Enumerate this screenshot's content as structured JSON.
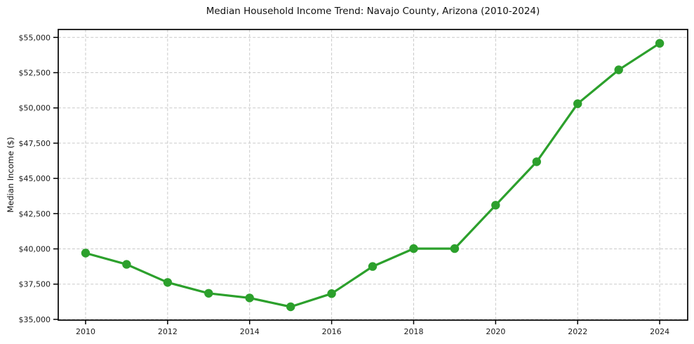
{
  "chart_data": {
    "type": "line",
    "title": "Median Household Income Trend: Navajo County, Arizona (2010-2024)",
    "xlabel": "",
    "ylabel": "Median Income ($)",
    "series": [
      {
        "name": "Median Household Income",
        "x": [
          2010,
          2011,
          2012,
          2013,
          2014,
          2015,
          2016,
          2017,
          2018,
          2019,
          2020,
          2021,
          2022,
          2023,
          2024
        ],
        "values": [
          39700,
          38900,
          37620,
          36850,
          36520,
          35890,
          36830,
          38750,
          40020,
          40020,
          43100,
          46180,
          50300,
          52700,
          54580
        ]
      }
    ],
    "xlim": [
      2009.333,
      2024.683
    ],
    "ylim": [
      34946,
      55563
    ],
    "x_ticks": [
      2010,
      2012,
      2014,
      2016,
      2018,
      2020,
      2022,
      2024
    ],
    "x_tick_labels": [
      "2010",
      "2012",
      "2014",
      "2016",
      "2018",
      "2020",
      "2022",
      "2024"
    ],
    "y_ticks": [
      35000,
      37500,
      40000,
      42500,
      45000,
      47500,
      50000,
      52500,
      55000
    ],
    "y_tick_labels": [
      "$35,000",
      "$37,500",
      "$40,000",
      "$42,500",
      "$45,000",
      "$47,500",
      "$50,000",
      "$52,500",
      "$55,000"
    ],
    "grid": true,
    "grid_style": "dashed",
    "legend_position": "none",
    "colors": {
      "line": "#2ca02c",
      "marker": "#2ca02c",
      "grid": "#c9c9c9",
      "axis": "#000000",
      "text": "#1a1a1a",
      "background": "#ffffff"
    }
  }
}
